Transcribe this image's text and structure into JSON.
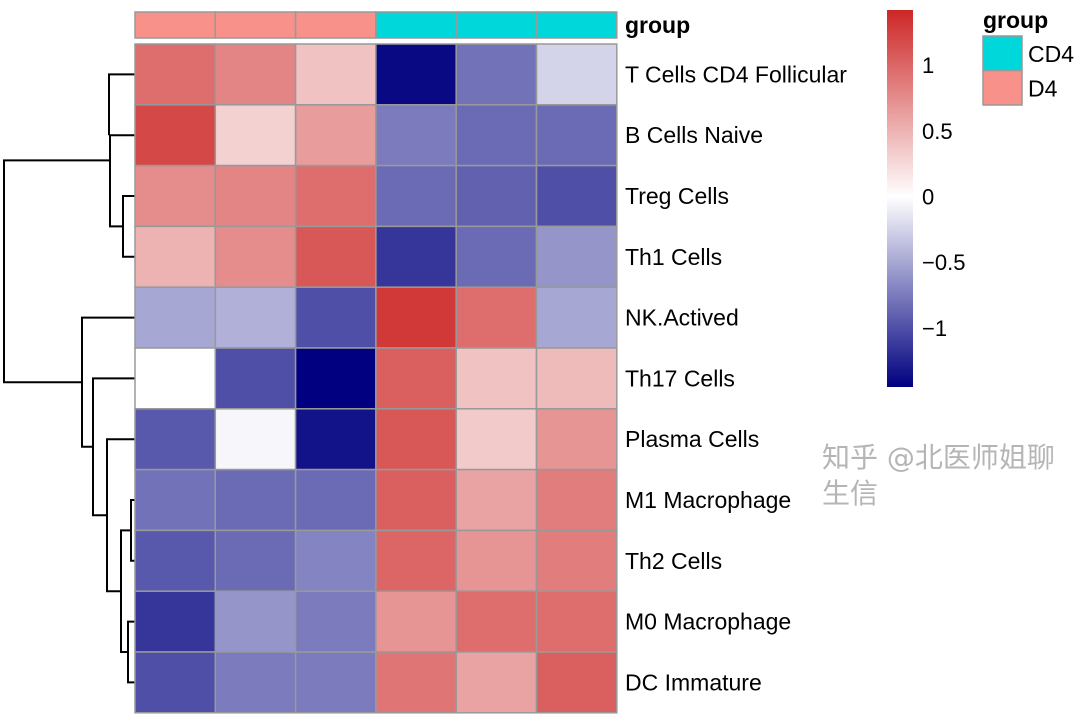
{
  "chart_data": {
    "type": "heatmap",
    "rows": [
      "T Cells CD4 Follicular",
      "B Cells Naive",
      "Treg Cells",
      "Th1 Cells",
      "NK.Actived",
      "Th17 Cells",
      "Plasma Cells",
      "M1 Macrophage",
      "Th2 Cells",
      "M0 Macrophage",
      "DC Immature"
    ],
    "column_groups": [
      "D4",
      "D4",
      "D4",
      "CD4",
      "CD4",
      "CD4"
    ],
    "values": [
      [
        0.95,
        0.8,
        0.4,
        -1.4,
        -0.8,
        -0.25
      ],
      [
        1.2,
        0.3,
        0.65,
        -0.75,
        -0.85,
        -0.85
      ],
      [
        0.75,
        0.8,
        0.95,
        -0.85,
        -0.9,
        -1.0
      ],
      [
        0.5,
        0.75,
        1.1,
        -1.15,
        -0.85,
        -0.6
      ],
      [
        -0.5,
        -0.45,
        -1.0,
        1.3,
        0.95,
        -0.5
      ],
      [
        0.0,
        -1.0,
        -1.45,
        1.05,
        0.4,
        0.45
      ],
      [
        -0.95,
        -0.05,
        -1.35,
        1.1,
        0.35,
        0.7
      ],
      [
        -0.8,
        -0.85,
        -0.85,
        1.05,
        0.6,
        0.85
      ],
      [
        -0.95,
        -0.85,
        -0.7,
        1.0,
        0.7,
        0.85
      ],
      [
        -1.15,
        -0.6,
        -0.75,
        0.7,
        0.95,
        0.95
      ],
      [
        -1.0,
        -0.75,
        -0.75,
        0.9,
        0.6,
        1.05
      ]
    ],
    "color_scale": {
      "low": "#000080",
      "mid": "#FFFFFF",
      "high": "#CD2626",
      "range": [
        -1.45,
        1.42
      ]
    },
    "colorbar_ticks": [
      1,
      0.5,
      0,
      -0.5,
      -1
    ],
    "colorbar_tick_labels": [
      "1",
      "0.5",
      "0",
      "−0.5",
      "−1"
    ],
    "annotation": {
      "title": "group",
      "legend_title": "group",
      "levels": [
        {
          "name": "CD4",
          "color": "#00D7DB"
        },
        {
          "name": "D4",
          "color": "#F8918A"
        }
      ]
    },
    "row_dendrogram": true
  },
  "watermark": "知乎 @北医师姐聊生信"
}
